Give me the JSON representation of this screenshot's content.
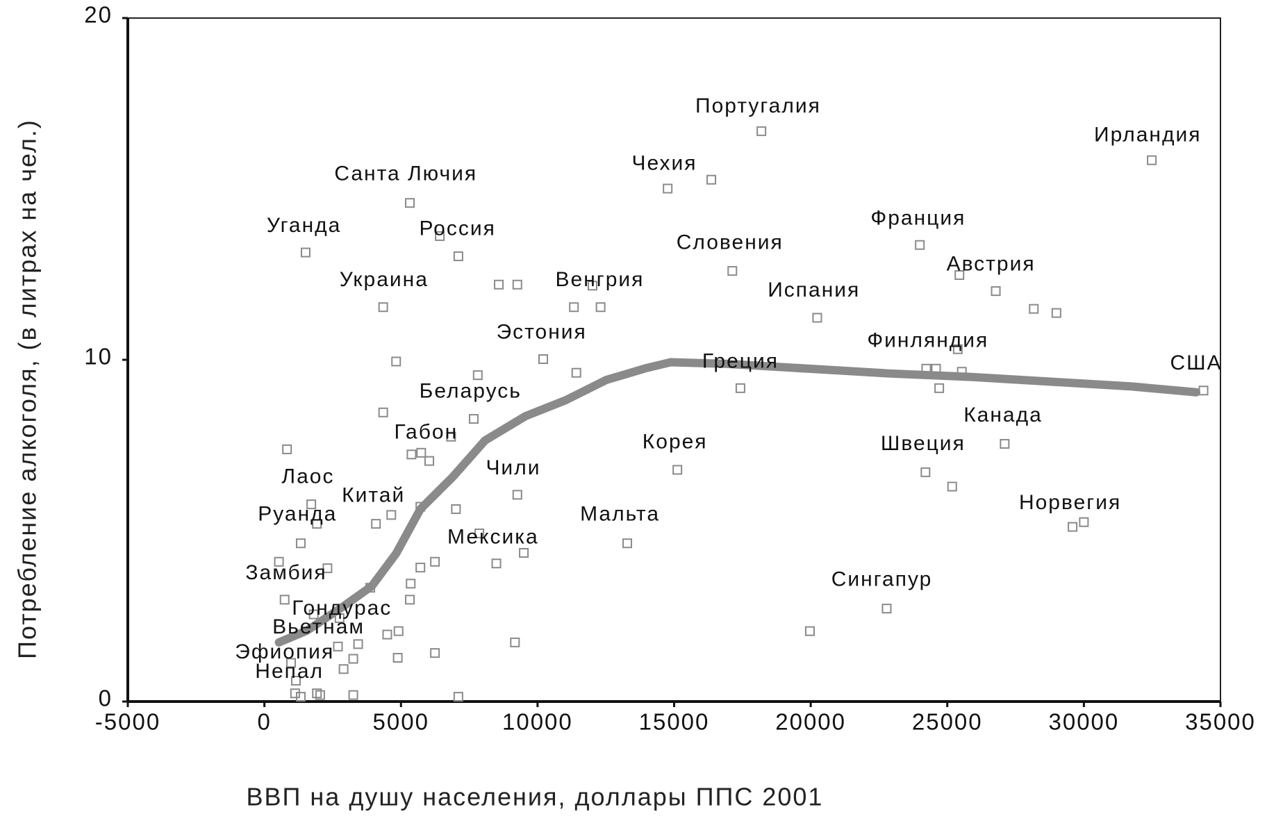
{
  "chart_data": {
    "type": "scatter",
    "xlabel": "ВВП на душу населения, доллары ППС 2001",
    "ylabel": "Потребление алкоголя, (в литрах на чел.)",
    "xlim": [
      -5000,
      35000
    ],
    "xticks": [
      -5000,
      0,
      5000,
      10000,
      15000,
      20000,
      25000,
      30000,
      35000
    ],
    "ylim": [
      0,
      20
    ],
    "yticks": [
      0,
      10,
      20
    ],
    "color": "#8a8a8a",
    "x": [
      32485,
      18195,
      14763,
      16361,
      5325,
      6420,
      7101,
      1509,
      17130,
      23994,
      25444,
      26775,
      28166,
      28994,
      4349,
      8580,
      9260,
      12012,
      11331,
      12308,
      20237,
      10207,
      4822,
      11420,
      7811,
      17426,
      25384,
      24231,
      24586,
      25532,
      24704,
      34379,
      4349,
      7663,
      6834,
      5385,
      5740,
      6036,
      828,
      27101,
      15118,
      24201,
      25178,
      9260,
      1716,
      5710,
      7012,
      4645,
      1923,
      4083,
      29586,
      30000,
      7870,
      1331,
      13284,
      9497,
      533,
      2308,
      6243,
      5710,
      8491,
      5355,
      3876,
      5325,
      740,
      22781,
      1805,
      2751,
      19970,
      4911,
      4497,
      3432,
      9172,
      6243,
      4882,
      2692,
      3254,
      2899,
      976,
      1124,
      1331,
      1923,
      2041,
      3254,
      7101,
      1154
    ],
    "y": [
      15.84,
      16.69,
      15.01,
      15.27,
      14.59,
      13.62,
      13.03,
      13.14,
      12.6,
      13.36,
      12.48,
      12.01,
      11.49,
      11.37,
      11.54,
      12.2,
      12.2,
      12.17,
      11.54,
      11.54,
      11.23,
      10.02,
      9.95,
      9.62,
      9.55,
      9.17,
      10.31,
      9.74,
      9.74,
      9.65,
      9.17,
      9.1,
      8.46,
      8.27,
      7.75,
      7.23,
      7.28,
      7.04,
      7.38,
      7.54,
      6.78,
      6.71,
      6.29,
      6.05,
      5.77,
      5.7,
      5.63,
      5.46,
      5.2,
      5.2,
      5.11,
      5.25,
      4.92,
      4.63,
      4.63,
      4.35,
      4.09,
      3.9,
      4.09,
      3.92,
      4.04,
      3.45,
      3.33,
      2.98,
      2.98,
      2.72,
      2.55,
      2.44,
      2.06,
      2.06,
      1.96,
      1.68,
      1.73,
      1.42,
      1.28,
      1.61,
      1.25,
      0.95,
      1.13,
      0.24,
      0.14,
      0.24,
      0.19,
      0.19,
      0.14,
      0.61
    ],
    "trend": {
      "color": "#8a8a8a",
      "x": [
        533,
        1568,
        2899,
        3935,
        4822,
        5710,
        6893,
        8077,
        9556,
        11036,
        12515,
        13994,
        14882,
        16953,
        19911,
        22870,
        25828,
        28787,
        31746,
        34112
      ],
      "y": [
        1.73,
        2.08,
        2.79,
        3.38,
        4.33,
        5.63,
        6.57,
        7.64,
        8.35,
        8.82,
        9.41,
        9.76,
        9.93,
        9.88,
        9.74,
        9.6,
        9.5,
        9.36,
        9.22,
        9.05
      ]
    },
    "annotations": [
      {
        "text": "Португалия",
        "x": 18076,
        "y": 17.4
      },
      {
        "text": "Ирландия",
        "x": 32337,
        "y": 16.55
      },
      {
        "text": "Чехия",
        "x": 14645,
        "y": 15.72
      },
      {
        "text": "Санта Лючия",
        "x": 5178,
        "y": 15.41
      },
      {
        "text": "Уганда",
        "x": 1450,
        "y": 13.9
      },
      {
        "text": "Россия",
        "x": 7071,
        "y": 13.81
      },
      {
        "text": "Франция",
        "x": 23935,
        "y": 14.11
      },
      {
        "text": "Словения",
        "x": 17041,
        "y": 13.4
      },
      {
        "text": "Австрия",
        "x": 26598,
        "y": 12.77
      },
      {
        "text": "Украина",
        "x": 4379,
        "y": 12.32
      },
      {
        "text": "Венгрия",
        "x": 12278,
        "y": 12.32
      },
      {
        "text": "Испания",
        "x": 20118,
        "y": 12.01
      },
      {
        "text": "Эстония",
        "x": 10148,
        "y": 10.78
      },
      {
        "text": "Финляндия",
        "x": 24290,
        "y": 10.54
      },
      {
        "text": "Греция",
        "x": 17426,
        "y": 9.93
      },
      {
        "text": "США",
        "x": 34112,
        "y": 9.88
      },
      {
        "text": "Беларусь",
        "x": 7544,
        "y": 9.05
      },
      {
        "text": "Канада",
        "x": 27041,
        "y": 8.35
      },
      {
        "text": "Габон",
        "x": 5917,
        "y": 7.85
      },
      {
        "text": "Корея",
        "x": 15030,
        "y": 7.57
      },
      {
        "text": "Швеция",
        "x": 24112,
        "y": 7.52
      },
      {
        "text": "Чили",
        "x": 9112,
        "y": 6.81
      },
      {
        "text": "Лаос",
        "x": 1598,
        "y": 6.55
      },
      {
        "text": "Китай",
        "x": 3994,
        "y": 6.0
      },
      {
        "text": "Норвегия",
        "x": 29497,
        "y": 5.79
      },
      {
        "text": "Руанда",
        "x": 1213,
        "y": 5.46
      },
      {
        "text": "Мальта",
        "x": 13018,
        "y": 5.46
      },
      {
        "text": "Мексика",
        "x": 8373,
        "y": 4.78
      },
      {
        "text": "Замбия",
        "x": 799,
        "y": 3.74
      },
      {
        "text": "Сингапур",
        "x": 22604,
        "y": 3.55
      },
      {
        "text": "Гондурас",
        "x": 2840,
        "y": 2.7
      },
      {
        "text": "Вьетнам",
        "x": 1982,
        "y": 2.15
      },
      {
        "text": "Эфиопия",
        "x": 740,
        "y": 1.42
      },
      {
        "text": "Непал",
        "x": 917,
        "y": 0.85
      }
    ]
  }
}
